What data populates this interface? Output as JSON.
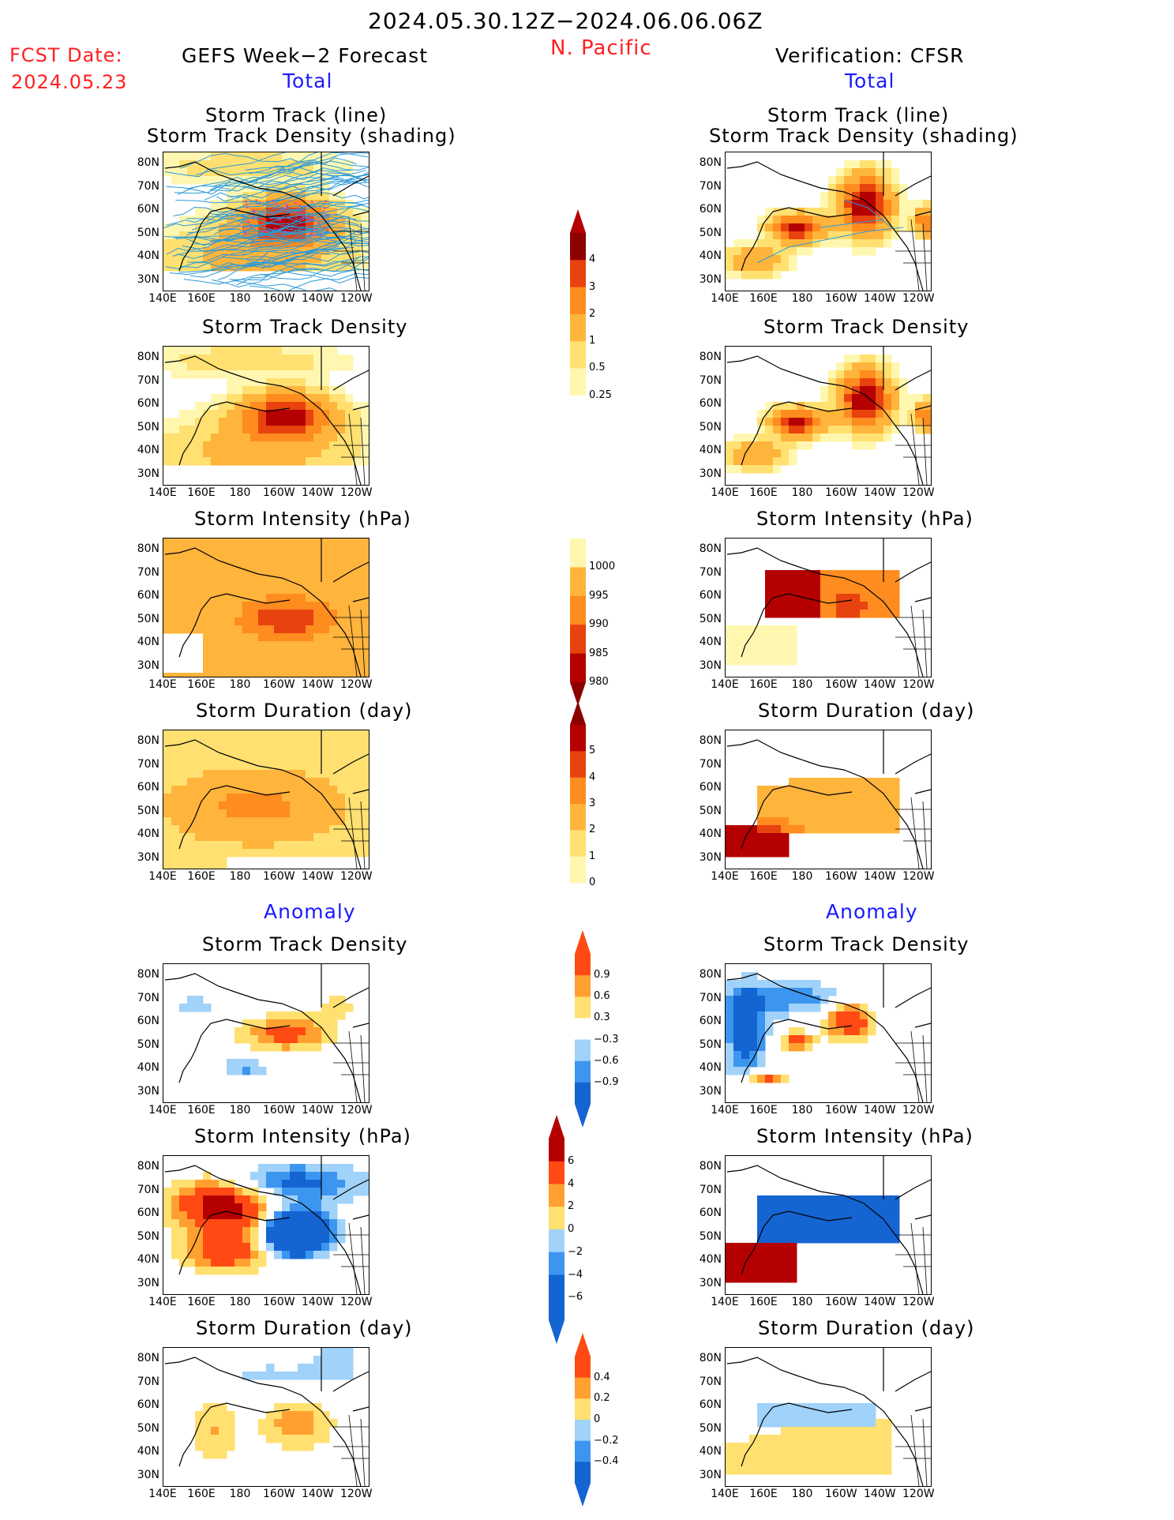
{
  "header": {
    "date_range": "2024.05.30.12Z−2024.06.06.06Z",
    "region": "N. Pacific",
    "fcst_label": "FCST Date:",
    "fcst_date": "2024.05.23",
    "left_title": "GEFS Week−2 Forecast",
    "right_title": "Verification: CFSR",
    "total_label": "Total",
    "anomaly_label": "Anomaly"
  },
  "panel_titles": {
    "track_line": "Storm Track (line)",
    "track_shading": "Storm Track Density (shading)",
    "density": "Storm Track Density",
    "intensity": "Storm Intensity (hPa)",
    "duration": "Storm Duration (day)"
  },
  "axes": {
    "lat_labels": [
      "80N",
      "70N",
      "60N",
      "50N",
      "40N",
      "30N"
    ],
    "lon_labels": [
      "140E",
      "160E",
      "180",
      "160W",
      "140W",
      "120W"
    ]
  },
  "colorbars": {
    "density_total": [
      "4",
      "3",
      "2",
      "1",
      "0.5",
      "0.25"
    ],
    "intensity_total": [
      "1000",
      "995",
      "990",
      "985",
      "980"
    ],
    "duration_total": [
      "5",
      "4",
      "3",
      "2",
      "1",
      "0"
    ],
    "density_anom": [
      "0.9",
      "0.6",
      "0.3",
      "−0.3",
      "−0.6",
      "−0.9"
    ],
    "intensity_anom": [
      "6",
      "4",
      "2",
      "0",
      "−2",
      "−4",
      "−6"
    ],
    "duration_anom": [
      "0.4",
      "0.2",
      "0",
      "−0.2",
      "−0.4"
    ]
  },
  "colors": {
    "seq_total": [
      "#fff7b0",
      "#ffe070",
      "#ffb43c",
      "#ff8c1e",
      "#e8420e",
      "#b40000",
      "#8c0000"
    ],
    "div_anom": [
      "#1464d2",
      "#3c96f0",
      "#a0d2fa",
      "#ffffff",
      "#ffe070",
      "#ffa030",
      "#ff4a14",
      "#b40000"
    ],
    "track_line": "#2b9ad8",
    "track_center": "#c040c0"
  }
}
